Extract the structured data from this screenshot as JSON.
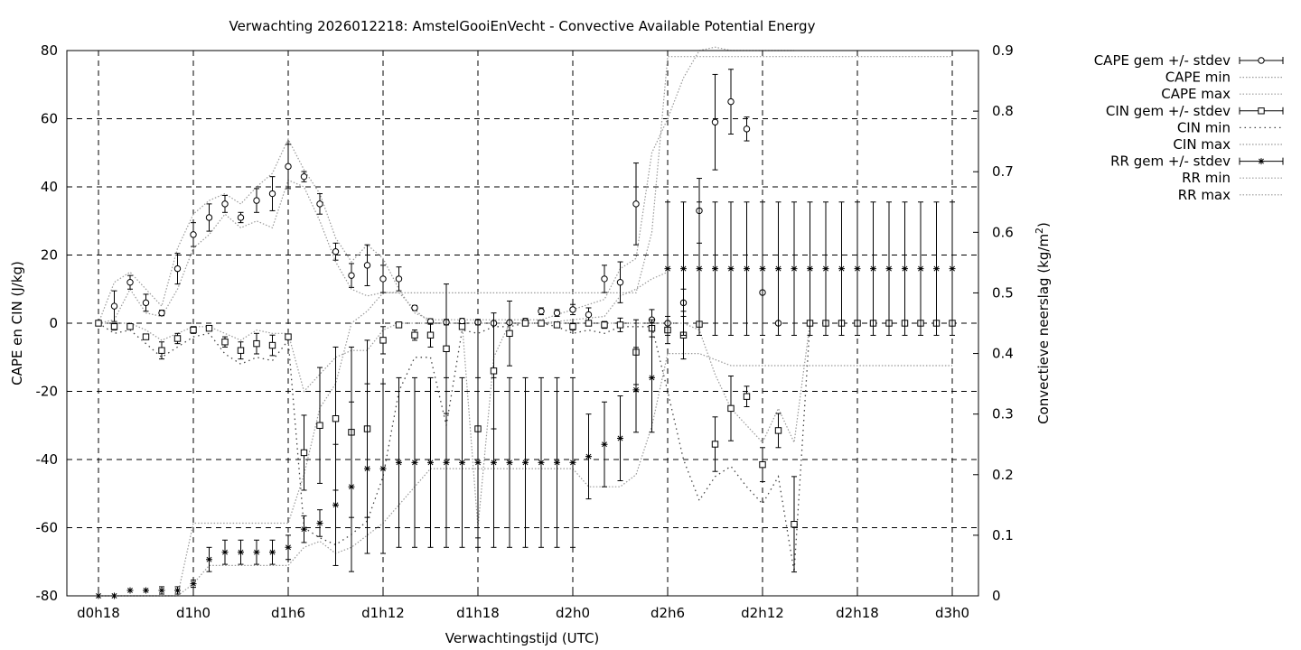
{
  "chart_data": {
    "type": "line",
    "title": "Verwachting 2026012218: AmstelGooiEnVecht - Convective Available Potential Energy",
    "xlabel": "Verwachtingstijd (UTC)",
    "ylabel": "CAPE en CIN (J/kg)",
    "y2label_main": "Convectieve neerslag (kg/m",
    "y2label_sup": "2",
    "y2label_end": ")",
    "x_unit": "hours since d0h18",
    "xlim": [
      0,
      54
    ],
    "ylim": [
      -80,
      80
    ],
    "y2lim": [
      0,
      0.9
    ],
    "grid": true,
    "legend_position": "outside-right",
    "x_ticks": [
      {
        "x": 0,
        "label": "d0h18"
      },
      {
        "x": 6,
        "label": "d1h0"
      },
      {
        "x": 12,
        "label": "d1h6"
      },
      {
        "x": 18,
        "label": "d1h12"
      },
      {
        "x": 24,
        "label": "d1h18"
      },
      {
        "x": 30,
        "label": "d2h0"
      },
      {
        "x": 36,
        "label": "d2h6"
      },
      {
        "x": 42,
        "label": "d2h12"
      },
      {
        "x": 48,
        "label": "d2h18"
      },
      {
        "x": 54,
        "label": "d3h0"
      }
    ],
    "y_ticks": [
      -80,
      -60,
      -40,
      -20,
      0,
      20,
      40,
      60,
      80
    ],
    "y2_ticks": [
      "0",
      "0.1",
      "0.2",
      "0.3",
      "0.4",
      "0.5",
      "0.6",
      "0.7",
      "0.8",
      "0.9"
    ],
    "legend": [
      {
        "label": "CAPE gem +/- stdev",
        "marker": "circle",
        "style": "errorbar"
      },
      {
        "label": "CAPE min",
        "style": "dotted"
      },
      {
        "label": "CAPE max",
        "style": "dotted"
      },
      {
        "label": "CIN gem +/- stdev",
        "marker": "square",
        "style": "errorbar"
      },
      {
        "label": "CIN min",
        "style": "dotted-sparse"
      },
      {
        "label": "CIN max",
        "style": "dotted"
      },
      {
        "label": "RR gem +/- stdev",
        "marker": "star",
        "style": "errorbar"
      },
      {
        "label": "RR min",
        "style": "dotted"
      },
      {
        "label": "RR max",
        "style": "dotted"
      }
    ],
    "series": [
      {
        "name": "CAPE gem +/- stdev",
        "axis": "y1",
        "marker": "circle",
        "x": [
          1,
          2,
          3,
          4,
          5,
          6,
          7,
          8,
          9,
          10,
          11,
          12,
          13,
          14,
          15,
          16,
          17,
          18,
          19,
          20,
          21,
          22,
          23,
          24,
          25,
          26,
          27,
          28,
          29,
          30,
          31,
          32,
          33,
          34,
          35,
          36,
          37,
          38,
          39,
          40,
          41,
          42,
          43
        ],
        "y": [
          5,
          12,
          6,
          3,
          16,
          26,
          31,
          35,
          31,
          36,
          38,
          46,
          43,
          35,
          21,
          14,
          17,
          13,
          13,
          4.5,
          0.5,
          0.3,
          0.6,
          0.3,
          0,
          0.2,
          0.6,
          3.5,
          3,
          4,
          2.5,
          13,
          12,
          35,
          1,
          0,
          6,
          33,
          59,
          65,
          57,
          9,
          0
        ],
        "err": [
          4.5,
          2,
          2.5,
          0.8,
          4.5,
          3.5,
          4,
          2.5,
          1.5,
          3.5,
          5,
          6.5,
          1.5,
          3,
          2.5,
          3.5,
          6,
          4,
          3.5,
          0.7,
          0.8,
          0.8,
          0.8,
          0.8,
          0.5,
          0.5,
          0.8,
          1,
          1,
          1.5,
          2,
          4,
          6,
          12,
          3,
          0.5,
          4,
          9.5,
          14,
          9.5,
          3.5,
          0,
          0
        ]
      },
      {
        "name": "CAPE min",
        "axis": "y1",
        "style": "dotted",
        "x": [
          0,
          1,
          2,
          3,
          4,
          5,
          6,
          7,
          8,
          9,
          10,
          11,
          12,
          13,
          14,
          15,
          16,
          17,
          18,
          19,
          20,
          21,
          22,
          24,
          28,
          30,
          32,
          33,
          34,
          35,
          36
        ],
        "y": [
          0,
          1,
          10,
          3,
          2,
          10,
          22,
          26,
          32,
          28,
          30,
          28,
          42,
          40,
          30,
          18,
          10,
          8,
          9,
          9,
          4,
          0,
          0,
          0,
          0,
          1,
          2,
          8,
          10,
          13,
          15
        ]
      },
      {
        "name": "CAPE max",
        "axis": "y1",
        "style": "dotted",
        "x": [
          0,
          1,
          2,
          3,
          4,
          5,
          6,
          7,
          8,
          9,
          10,
          11,
          12,
          13,
          14,
          15,
          16,
          17,
          18,
          19,
          20,
          21,
          22,
          24,
          28,
          30,
          32,
          33,
          34,
          35,
          36,
          37,
          38,
          39,
          40,
          41,
          42,
          43,
          44
        ],
        "y": [
          0,
          12,
          15,
          10,
          5,
          22,
          32,
          36,
          38,
          35,
          40,
          44,
          54,
          45,
          38,
          25,
          18,
          23,
          19,
          10,
          3,
          1,
          1,
          1,
          1,
          4,
          7,
          16,
          19,
          50,
          60,
          72,
          80,
          81,
          80,
          80,
          80,
          80,
          80
        ]
      },
      {
        "name": "CIN gem +/- stdev",
        "axis": "y1",
        "marker": "square",
        "x": [
          0,
          1,
          2,
          3,
          4,
          5,
          6,
          7,
          8,
          9,
          10,
          11,
          12,
          13,
          14,
          15,
          16,
          17,
          18,
          19,
          20,
          21,
          22,
          23,
          24,
          25,
          26,
          27,
          28,
          29,
          30,
          31,
          32,
          33,
          34,
          35,
          36,
          37,
          38,
          39,
          40,
          41,
          42,
          43,
          44,
          45,
          46,
          47,
          48,
          49,
          50,
          51,
          52,
          53,
          54
        ],
        "y": [
          0,
          -1,
          -1,
          -4,
          -8,
          -4.5,
          -2,
          -1.5,
          -5.5,
          -8,
          -6,
          -6.5,
          -4,
          -38,
          -30,
          -28,
          -32,
          -31,
          -5,
          -0.5,
          -3.5,
          -3.5,
          -7.5,
          -1,
          -31,
          -14,
          -3,
          0,
          0,
          -0.5,
          -1,
          0,
          -0.5,
          -0.5,
          -8.5,
          -1.5,
          -2,
          -3.5,
          -0.3,
          -35.5,
          -25,
          -21.5,
          -41.5,
          -31.5,
          -59,
          0,
          0,
          0,
          0,
          0,
          0,
          0,
          0,
          0,
          0
        ],
        "err": [
          0,
          1,
          0,
          0.5,
          2.5,
          1.5,
          1,
          0.5,
          1.5,
          2.5,
          3,
          3,
          0.5,
          11,
          17,
          21,
          25,
          26,
          4,
          0.5,
          1.5,
          3.5,
          19,
          0.5,
          32,
          17,
          9.5,
          0.3,
          0.3,
          0.3,
          1,
          0.3,
          1,
          2,
          9.5,
          2.5,
          4,
          7,
          0.3,
          8,
          9.5,
          3,
          5,
          5,
          14,
          0,
          0,
          0,
          0,
          0,
          0,
          0,
          0,
          0,
          0
        ]
      },
      {
        "name": "CIN min",
        "axis": "y1",
        "style": "dotted-sparse",
        "x": [
          0,
          1,
          2,
          3,
          4,
          5,
          6,
          7,
          8,
          9,
          10,
          11,
          12,
          13,
          14,
          15,
          16,
          17,
          18,
          19,
          20,
          21,
          22,
          23,
          24,
          25,
          26,
          27,
          28,
          29,
          30,
          31,
          32,
          33,
          34,
          35,
          36,
          37,
          38,
          39,
          40,
          41,
          42,
          43,
          44,
          45
        ],
        "y": [
          0,
          -3,
          -2,
          -6,
          -10,
          -7,
          -4,
          -3,
          -9,
          -12,
          -10,
          -11,
          -5,
          -60,
          -63,
          -65,
          -62,
          -58,
          -45,
          -20,
          -10,
          -10,
          -30,
          -2,
          -3,
          -1,
          -1,
          0,
          0,
          -1,
          -3,
          -2,
          -3,
          -1,
          -1,
          -1,
          -20,
          -40,
          -52,
          -45,
          -42,
          -48,
          -53,
          -45,
          -73,
          0
        ]
      },
      {
        "name": "CIN max",
        "axis": "y1",
        "style": "dotted",
        "x": [
          0,
          1,
          2,
          3,
          4,
          5,
          6,
          7,
          8,
          9,
          10,
          11,
          12,
          13,
          14,
          15,
          16,
          17,
          18,
          19,
          20,
          21,
          22,
          23,
          24,
          25,
          26,
          28,
          30,
          32,
          33,
          34,
          35,
          36,
          37,
          38,
          39,
          40,
          41,
          42,
          43,
          44,
          45
        ],
        "y": [
          0,
          0,
          0,
          -2,
          -5,
          -3,
          -1,
          -1,
          -3,
          -5,
          -2,
          -3,
          -3,
          -20,
          -15,
          -10,
          -8,
          -8,
          -2,
          0,
          0,
          0,
          0,
          0,
          -60,
          -10,
          0,
          0,
          0,
          0,
          0,
          0,
          0,
          0,
          0,
          -2,
          -15,
          -25,
          -30,
          -35,
          -25,
          -35,
          0
        ]
      },
      {
        "name": "RR gem +/- stdev",
        "axis": "y2",
        "marker": "star",
        "x": [
          0,
          1,
          2,
          3,
          4,
          5,
          6,
          7,
          8,
          9,
          10,
          11,
          12,
          13,
          14,
          15,
          16,
          17,
          18,
          19,
          20,
          21,
          22,
          23,
          24,
          25,
          26,
          27,
          28,
          29,
          30,
          31,
          32,
          33,
          34,
          35,
          36,
          37,
          38,
          39,
          40,
          41,
          42,
          43,
          44,
          45,
          46,
          47,
          48,
          49,
          50,
          51,
          52,
          53,
          54
        ],
        "y": [
          0,
          0,
          0.009,
          0.009,
          0.009,
          0.009,
          0.02,
          0.06,
          0.072,
          0.072,
          0.072,
          0.072,
          0.08,
          0.11,
          0.12,
          0.15,
          0.18,
          0.21,
          0.21,
          0.22,
          0.22,
          0.22,
          0.22,
          0.22,
          0.22,
          0.22,
          0.22,
          0.22,
          0.22,
          0.22,
          0.22,
          0.23,
          0.25,
          0.26,
          0.34,
          0.36,
          0.54,
          0.54,
          0.54,
          0.54,
          0.54,
          0.54,
          0.54,
          0.54,
          0.54,
          0.54,
          0.54,
          0.54,
          0.54,
          0.54,
          0.54,
          0.54,
          0.54,
          0.54,
          0.54
        ],
        "err": [
          0,
          0,
          0,
          0,
          0.006,
          0.006,
          0.006,
          0.02,
          0.02,
          0.02,
          0.02,
          0.02,
          0.02,
          0.022,
          0.022,
          0.1,
          0.14,
          0.14,
          0.14,
          0.14,
          0.14,
          0.14,
          0.14,
          0.14,
          0.14,
          0.14,
          0.14,
          0.14,
          0.14,
          0.14,
          0.14,
          0.07,
          0.07,
          0.07,
          0.07,
          0.09,
          0.11,
          0.11,
          0.11,
          0.11,
          0.11,
          0.11,
          0.11,
          0.11,
          0.11,
          0.11,
          0.11,
          0.11,
          0.11,
          0.11,
          0.11,
          0.11,
          0.11,
          0.11,
          0.11
        ]
      },
      {
        "name": "RR min",
        "axis": "y2",
        "style": "dotted",
        "x": [
          0,
          3,
          5,
          6,
          7,
          8,
          9,
          10,
          11,
          12,
          13,
          14,
          15,
          16,
          17,
          18,
          19,
          20,
          21,
          22,
          24,
          30,
          31,
          32,
          33,
          34,
          35,
          36,
          38,
          40,
          42,
          44,
          46,
          48,
          50,
          52,
          54
        ],
        "y": [
          0,
          0,
          0,
          0.02,
          0.05,
          0.05,
          0.05,
          0.05,
          0.05,
          0.05,
          0.08,
          0.09,
          0.07,
          0.08,
          0.1,
          0.12,
          0.15,
          0.18,
          0.21,
          0.21,
          0.21,
          0.21,
          0.18,
          0.18,
          0.18,
          0.2,
          0.28,
          0.4,
          0.4,
          0.38,
          0.38,
          0.38,
          0.38,
          0.38,
          0.38,
          0.38,
          0.38
        ]
      },
      {
        "name": "RR max",
        "axis": "y2",
        "style": "dotted",
        "x": [
          0,
          3,
          5,
          6,
          7,
          8,
          9,
          10,
          11,
          12,
          13,
          14,
          15,
          16,
          17,
          18,
          19,
          20,
          21,
          22,
          24,
          30,
          31,
          32,
          33,
          34,
          35,
          36,
          38,
          40,
          42,
          44,
          46,
          48,
          50,
          52,
          54
        ],
        "y": [
          0,
          0,
          0,
          0.12,
          0.12,
          0.12,
          0.12,
          0.12,
          0.12,
          0.12,
          0.2,
          0.31,
          0.35,
          0.45,
          0.47,
          0.5,
          0.5,
          0.5,
          0.5,
          0.5,
          0.5,
          0.5,
          0.5,
          0.5,
          0.5,
          0.5,
          0.6,
          0.89,
          0.89,
          0.89,
          0.89,
          0.89,
          0.89,
          0.89,
          0.89,
          0.89,
          0.89
        ]
      }
    ]
  }
}
